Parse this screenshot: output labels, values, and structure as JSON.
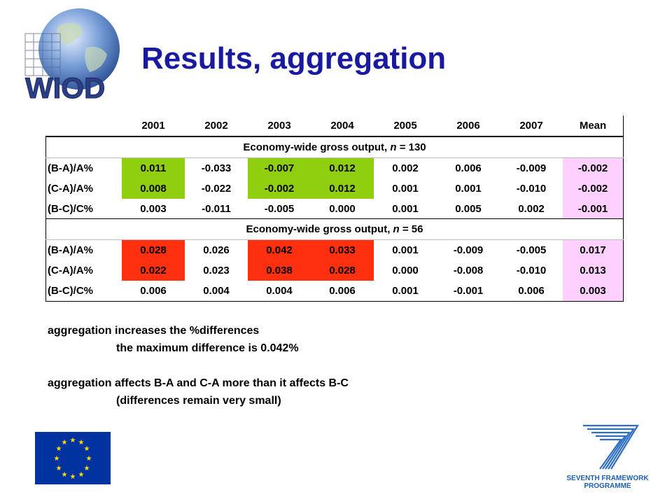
{
  "slide": {
    "title": "Results, aggregation",
    "logo_text": "WIOD"
  },
  "table": {
    "headers": [
      "",
      "2001",
      "2002",
      "2003",
      "2004",
      "2005",
      "2006",
      "2007",
      "Mean"
    ],
    "sections": [
      {
        "title_prefix": "Economy-wide gross output, ",
        "title_n": "n",
        "title_suffix": " = 130",
        "rows": [
          {
            "label": "(B-A)/A%",
            "values": [
              "0.011",
              "-0.033",
              "-0.007",
              "0.012",
              "0.002",
              "0.006",
              "-0.009",
              "-0.002"
            ]
          },
          {
            "label": "(C-A)/A%",
            "values": [
              "0.008",
              "-0.022",
              "-0.002",
              "0.012",
              "0.001",
              "0.001",
              "-0.010",
              "-0.002"
            ]
          },
          {
            "label": "(B-C)/C%",
            "values": [
              "0.003",
              "-0.011",
              "-0.005",
              "0.000",
              "0.001",
              "0.005",
              "0.002",
              "-0.001"
            ]
          }
        ]
      },
      {
        "title_prefix": "Economy-wide gross output, ",
        "title_n": "n",
        "title_suffix": " = 56",
        "rows": [
          {
            "label": "(B-A)/A%",
            "values": [
              "0.028",
              "0.026",
              "0.042",
              "0.033",
              "0.001",
              "-0.009",
              "-0.005",
              "0.017"
            ]
          },
          {
            "label": "(C-A)/A%",
            "values": [
              "0.022",
              "0.023",
              "0.038",
              "0.028",
              "0.000",
              "-0.008",
              "-0.010",
              "0.013"
            ]
          },
          {
            "label": "(B-C)/C%",
            "values": [
              "0.006",
              "0.004",
              "0.004",
              "0.006",
              "0.001",
              "-0.001",
              "0.006",
              "0.003"
            ]
          }
        ]
      }
    ],
    "highlight_colors": {
      "green": "#8fcf0f",
      "red": "#ff3010",
      "pink": "#fdd0ff"
    }
  },
  "notes": {
    "line1": "aggregation increases the %differences",
    "line2": "the maximum difference is 0.042%",
    "line3": "aggregation affects B-A and C-A more than it affects B-C",
    "line4": "(differences remain very small)"
  },
  "footer": {
    "fp7_line1": "SEVENTH FRAMEWORK",
    "fp7_line2": "PROGRAMME"
  },
  "colors": {
    "title": "#1a1aa0",
    "eu_flag": "#0033a0",
    "eu_star": "#ffdd00",
    "fp7_blue": "#1f5fb0"
  }
}
